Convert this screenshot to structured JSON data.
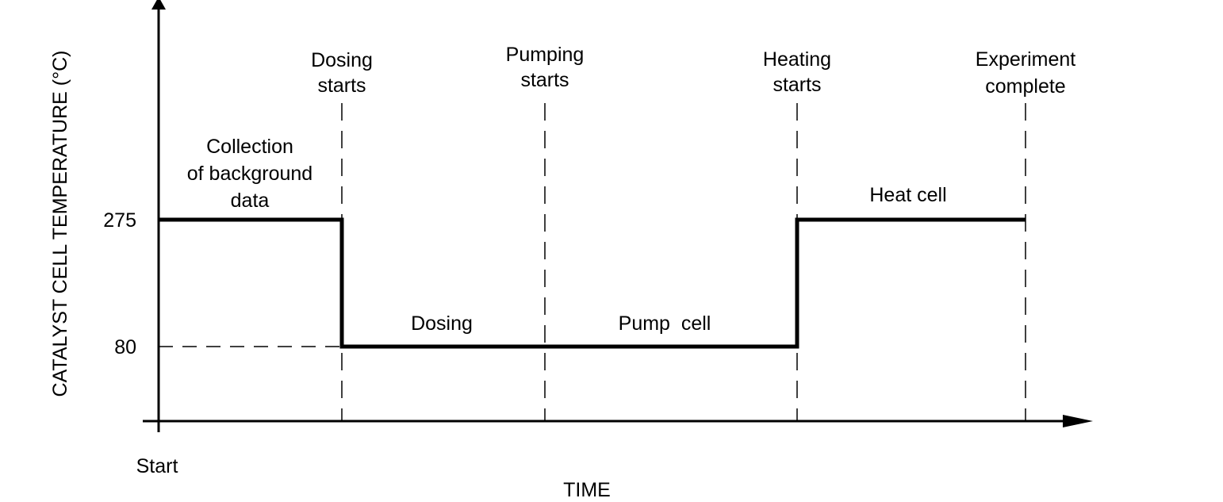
{
  "chart_data": {
    "type": "line",
    "title": "",
    "xlabel": "TIME",
    "ylabel": "CATALYST CELL TEMPERATURE (°C)",
    "x_start_label": "Start",
    "y_ticks": [
      275,
      80
    ],
    "y_tick_labels": [
      "275",
      "80"
    ],
    "grid": false,
    "events": [
      {
        "lines": [
          "Dosing",
          "starts"
        ]
      },
      {
        "lines": [
          "Pumping",
          "starts"
        ]
      },
      {
        "lines": [
          "Heating",
          "starts"
        ]
      },
      {
        "lines": [
          "Experiment",
          "complete"
        ]
      }
    ],
    "phases": [
      {
        "lines": [
          "Collection",
          "of background",
          "data"
        ],
        "temperature": 275
      },
      {
        "lines": [
          "Dosing"
        ],
        "temperature": 80
      },
      {
        "lines": [
          "Pump  cell"
        ],
        "temperature": 80
      },
      {
        "lines": [
          "Heat cell"
        ],
        "temperature": 275
      }
    ],
    "line_color": "#000000"
  }
}
